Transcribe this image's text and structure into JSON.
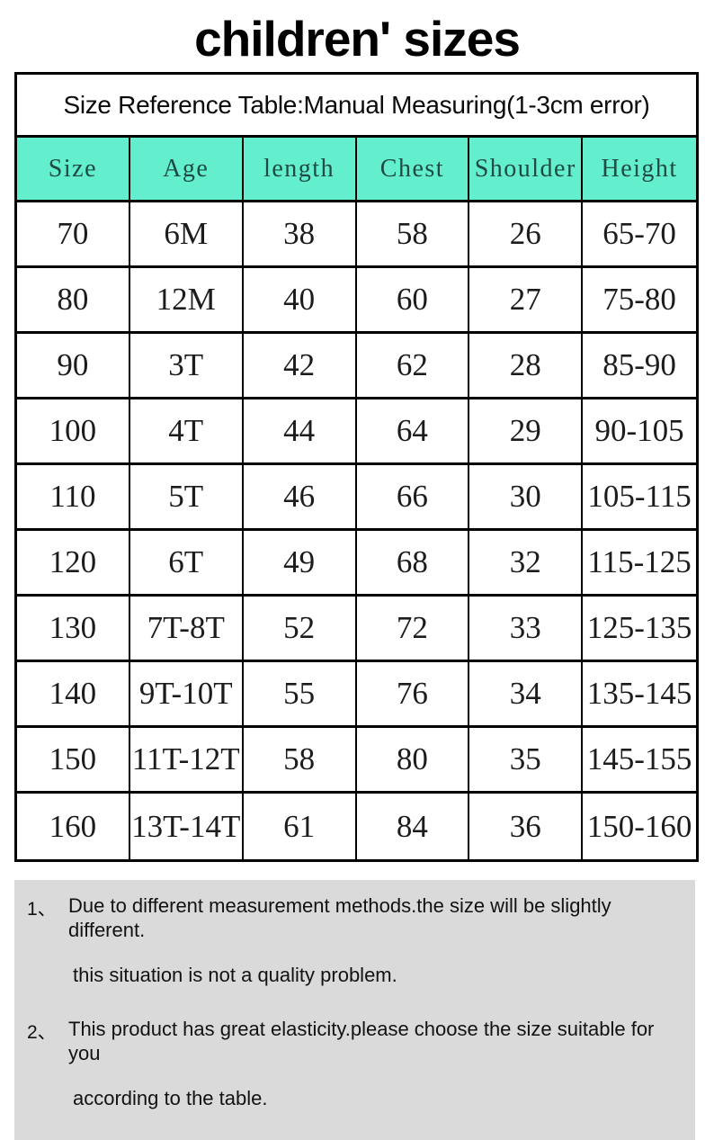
{
  "title": "children' sizes",
  "table": {
    "caption": "Size Reference Table:Manual Measuring(1-3cm error)",
    "columns": [
      "Size",
      "Age",
      "length",
      "Chest",
      "Shoulder",
      "Height"
    ],
    "rows": [
      [
        "70",
        "6M",
        "38",
        "58",
        "26",
        "65-70"
      ],
      [
        "80",
        "12M",
        "40",
        "60",
        "27",
        "75-80"
      ],
      [
        "90",
        "3T",
        "42",
        "62",
        "28",
        "85-90"
      ],
      [
        "100",
        "4T",
        "44",
        "64",
        "29",
        "90-105"
      ],
      [
        "110",
        "5T",
        "46",
        "66",
        "30",
        "105-115"
      ],
      [
        "120",
        "6T",
        "49",
        "68",
        "32",
        "115-125"
      ],
      [
        "130",
        "7T-8T",
        "52",
        "72",
        "33",
        "125-135"
      ],
      [
        "140",
        "9T-10T",
        "55",
        "76",
        "34",
        "135-145"
      ],
      [
        "150",
        "11T-12T",
        "58",
        "80",
        "35",
        "145-155"
      ],
      [
        "160",
        "13T-14T",
        "61",
        "84",
        "36",
        "150-160"
      ]
    ],
    "header_bg": "#63efcd",
    "header_text_color": "#1f4b42",
    "border_color": "#000000"
  },
  "notes": {
    "bg": "#dadada",
    "items": [
      {
        "num": "1、",
        "lines": [
          "Due to different measurement methods.the size will be slightly different.",
          "this situation is not a quality problem."
        ]
      },
      {
        "num": "2、",
        "lines": [
          "This product has great elasticity.please choose the size suitable for you",
          "according to the table."
        ]
      }
    ]
  }
}
